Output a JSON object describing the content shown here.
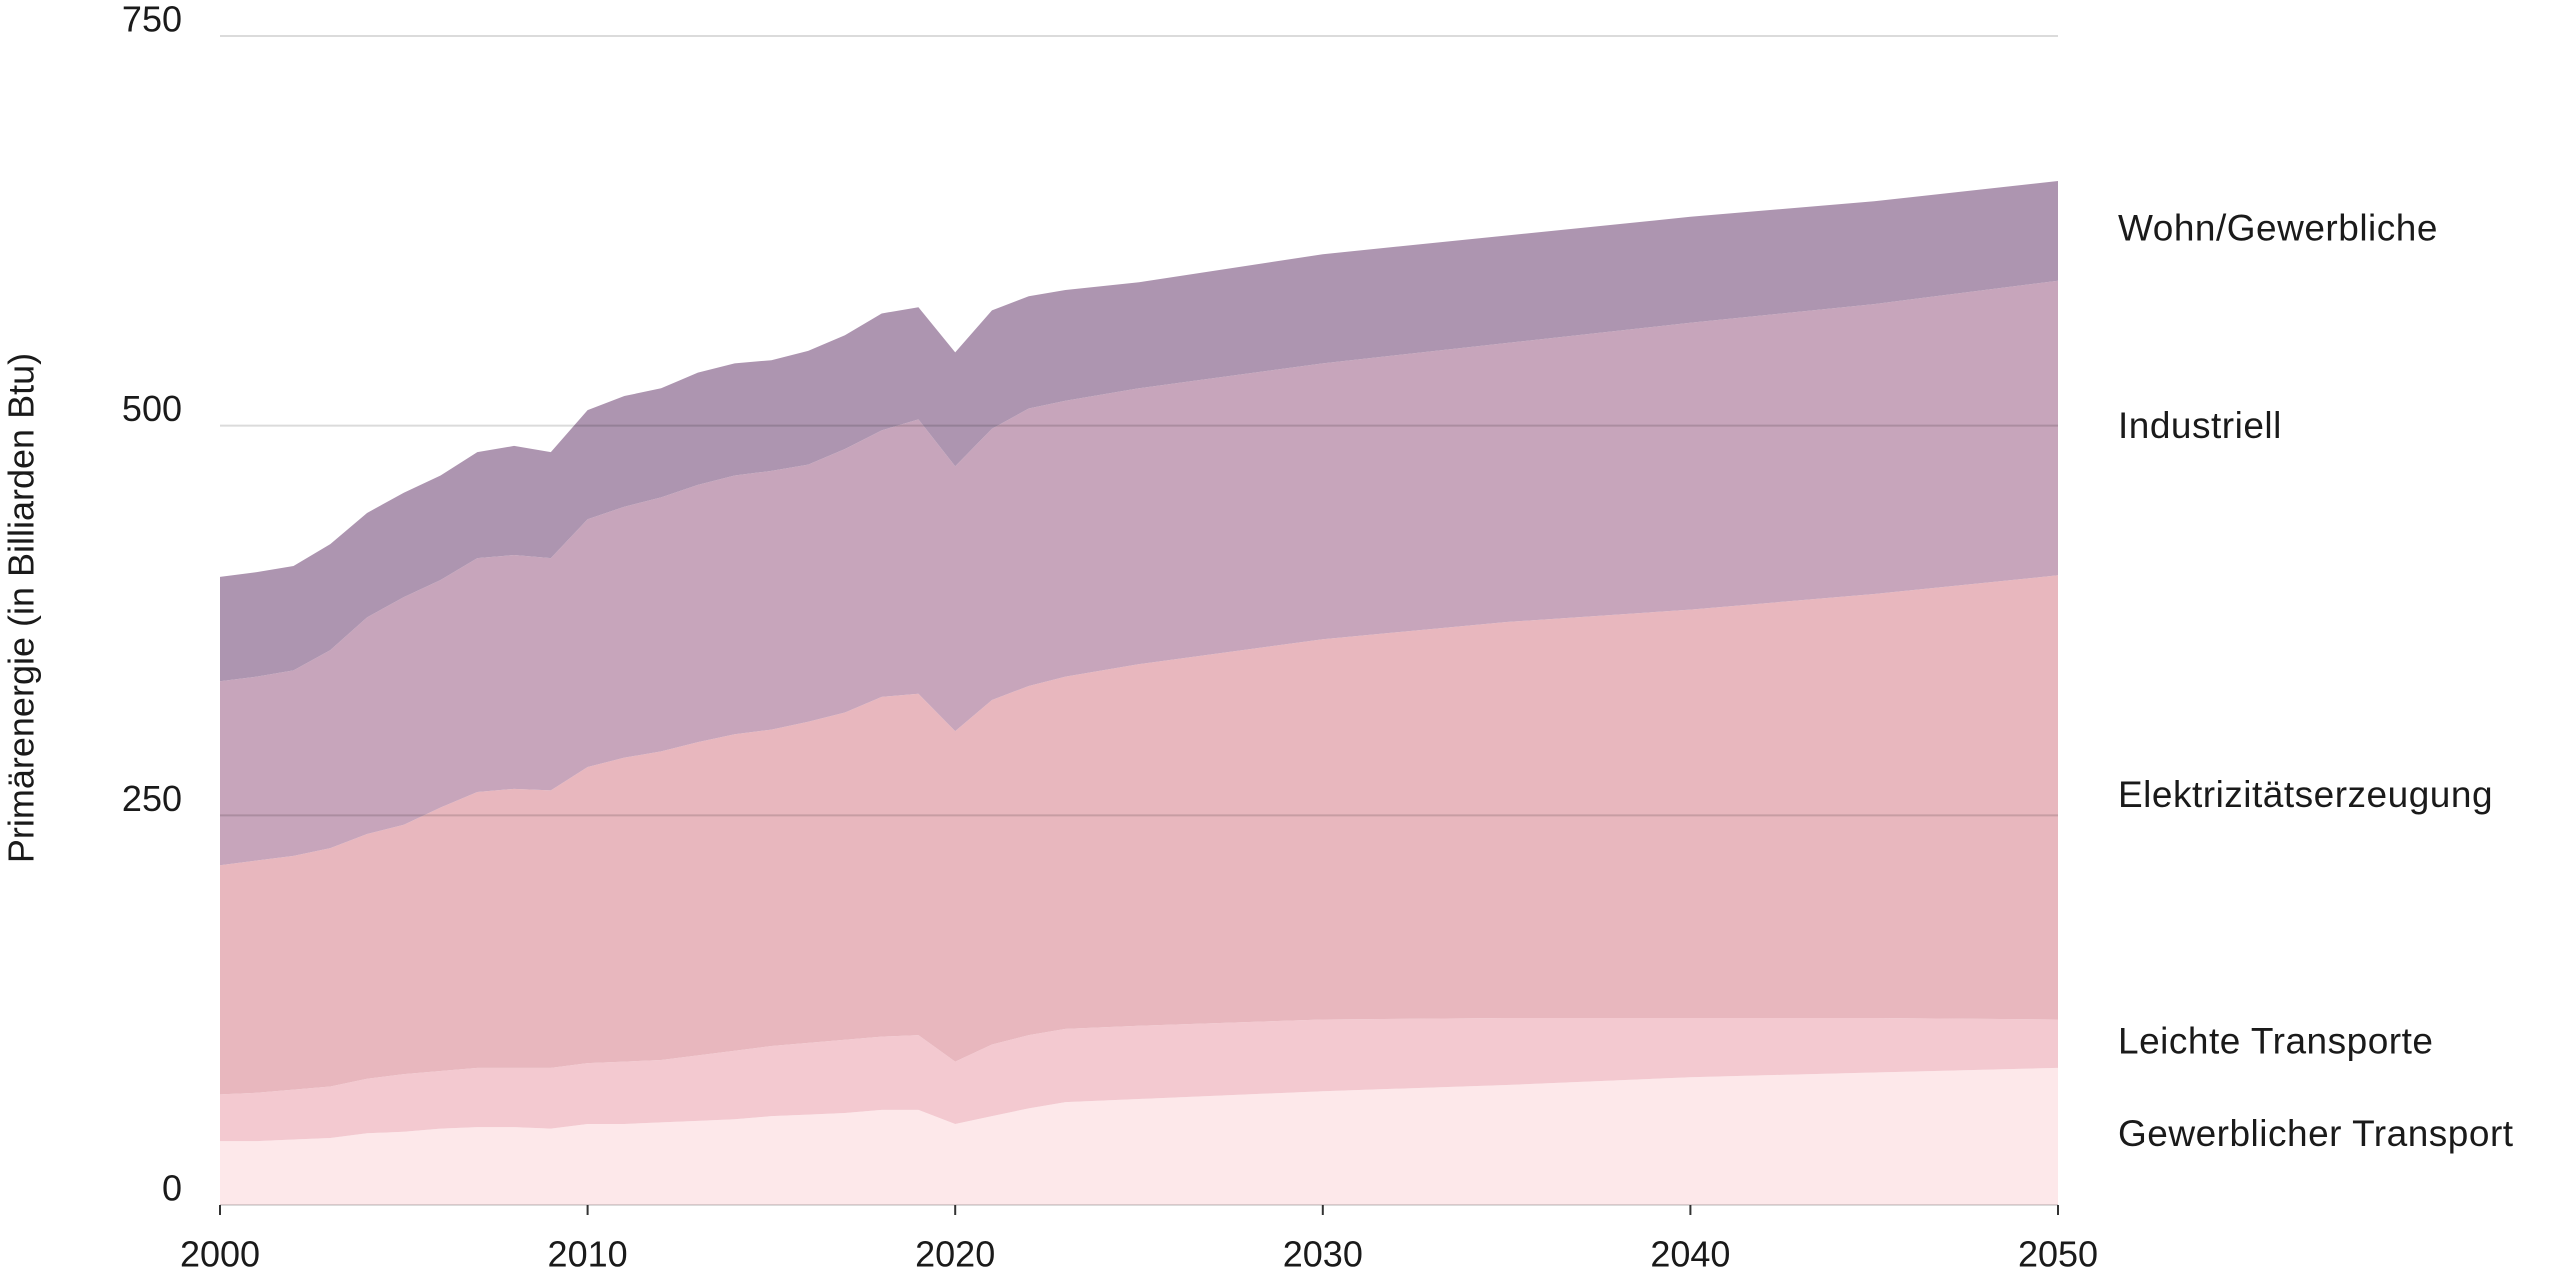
{
  "chart_data": {
    "type": "stacked-area",
    "y_label": "Primärenergie (in Billiarden Btu)",
    "x": [
      2000,
      2001,
      2002,
      2003,
      2004,
      2005,
      2006,
      2007,
      2008,
      2009,
      2010,
      2011,
      2012,
      2013,
      2014,
      2015,
      2016,
      2017,
      2018,
      2019,
      2020,
      2021,
      2022,
      2023,
      2025,
      2030,
      2035,
      2040,
      2045,
      2050
    ],
    "series": [
      {
        "name": "Gewerblicher Transport",
        "color": "#fde8ea",
        "values": [
          41,
          41,
          42,
          43,
          46,
          47,
          49,
          50,
          50,
          49,
          52,
          52,
          53,
          54,
          55,
          57,
          58,
          59,
          61,
          61,
          52,
          57,
          62,
          66,
          68,
          73,
          77,
          82,
          85,
          88
        ]
      },
      {
        "name": "Leichte Transporte",
        "color": "#f3c9d0",
        "values": [
          30,
          31,
          32,
          33,
          35,
          37,
          37,
          38,
          38,
          39,
          39,
          40,
          40,
          42,
          44,
          45,
          46,
          47,
          47,
          48,
          40,
          46,
          47,
          47,
          47,
          46,
          43,
          38,
          35,
          31
        ]
      },
      {
        "name": "Elektrizitätserzeugung",
        "color": "#e8b7be",
        "values": [
          147,
          149,
          150,
          153,
          157,
          160,
          169,
          177,
          179,
          178,
          190,
          195,
          198,
          201,
          203,
          203,
          206,
          210,
          218,
          219,
          212,
          221,
          224,
          226,
          232,
          244,
          254,
          262,
          272,
          285
        ]
      },
      {
        "name": "Industriell",
        "color": "#c7a5bb",
        "values": [
          118,
          118,
          119,
          127,
          139,
          146,
          146,
          150,
          150,
          149,
          159,
          161,
          163,
          165,
          166,
          166,
          165,
          169,
          171,
          176,
          170,
          174,
          178,
          177,
          177,
          177,
          179,
          184,
          186,
          189
        ]
      },
      {
        "name": "Wohn/Gewerbliche",
        "color": "#ad95b0",
        "values": [
          67,
          67,
          67,
          68,
          67,
          67,
          67,
          68,
          70,
          68,
          70,
          71,
          70,
          72,
          72,
          71,
          73,
          73,
          75,
          72,
          73,
          76,
          72,
          71,
          68,
          70,
          69,
          68,
          66,
          64
        ]
      }
    ],
    "xlim": [
      2000,
      2050
    ],
    "xticks": [
      2000,
      2010,
      2020,
      2030,
      2040,
      2050
    ],
    "ylim": [
      0,
      750
    ],
    "yticks": [
      0,
      250,
      500,
      750
    ],
    "grid": true
  }
}
